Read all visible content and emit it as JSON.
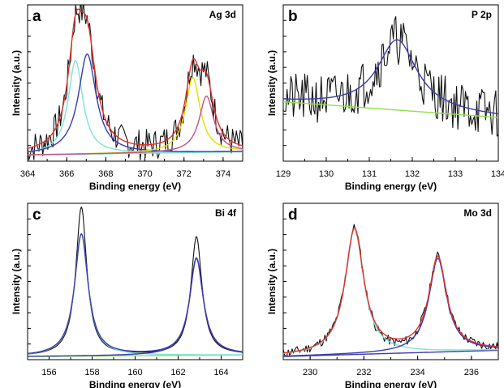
{
  "chart_data": [
    {
      "id": "a",
      "type": "line",
      "title": "Ag 3d",
      "xlabel": "Binding energy (eV)",
      "ylabel": "Intensity (a.u.)",
      "xlim": [
        364,
        375
      ],
      "ylim": [
        0,
        1.0
      ],
      "xticks": [
        364,
        366,
        368,
        370,
        372,
        374
      ],
      "baseline": [
        [
          364,
          0.04
        ],
        [
          375,
          0.06
        ]
      ],
      "peaks": [
        {
          "center": 366.45,
          "amp": 0.6,
          "width": 0.45,
          "color": "#7fe3d6"
        },
        {
          "center": 367.05,
          "amp": 0.64,
          "width": 0.55,
          "color": "#3a3ab0"
        },
        {
          "center": 372.45,
          "amp": 0.48,
          "width": 0.45,
          "color": "#e3e000"
        },
        {
          "center": 373.15,
          "amp": 0.36,
          "width": 0.45,
          "color": "#c0508a"
        }
      ],
      "envelope_color": "#e0302a",
      "baseline_color": "#7fe3d6",
      "raw": {
        "noise": 0.1,
        "seed": 7
      }
    },
    {
      "id": "b",
      "type": "line",
      "title": "P 2p",
      "xlabel": "Binding energy (eV)",
      "ylabel": "Intensity (a.u.)",
      "xlim": [
        129,
        134
      ],
      "ylim": [
        0,
        1.0
      ],
      "xticks": [
        129,
        130,
        131,
        132,
        133,
        134
      ],
      "baseline": [
        [
          129,
          0.38
        ],
        [
          134,
          0.28
        ]
      ],
      "peaks": [
        {
          "center": 131.65,
          "amp": 0.45,
          "width": 0.55,
          "color": "#3a3ab0"
        }
      ],
      "envelope_color": "#3a3ab0",
      "baseline_color": "#8ee04a",
      "raw": {
        "noise": 0.16,
        "seed": 21
      }
    },
    {
      "id": "c",
      "type": "line",
      "title": "Bi 4f",
      "xlabel": "Binding energy (eV)",
      "ylabel": "Intensity (a.u.)",
      "xlim": [
        155,
        165
      ],
      "ylim": [
        0,
        1.0
      ],
      "xticks": [
        156,
        158,
        160,
        162,
        164
      ],
      "baseline": [
        [
          155,
          0.02
        ],
        [
          165,
          0.03
        ]
      ],
      "peaks": [
        {
          "center": 157.5,
          "amp": 0.78,
          "width": 0.38,
          "color": "#7fe3d6"
        },
        {
          "center": 162.85,
          "amp": 0.62,
          "width": 0.38,
          "color": "#3a3ab0"
        }
      ],
      "envelope_color": "#3a3ab0",
      "baseline_color": "#8ee04a",
      "raw": {
        "noise": 0.0,
        "seed": 3,
        "sharpen": 0.82,
        "scale": 1.22
      }
    },
    {
      "id": "d",
      "type": "line",
      "title": "Mo 3d",
      "xlabel": "Binding energy (eV)",
      "ylabel": "Intensity (a.u.)",
      "xlim": [
        229,
        237
      ],
      "ylim": [
        0,
        1.0
      ],
      "xticks": [
        230,
        232,
        234,
        236
      ],
      "baseline": [
        [
          229,
          0.02
        ],
        [
          237,
          0.06
        ]
      ],
      "peaks": [
        {
          "center": 231.65,
          "amp": 0.8,
          "width": 0.42,
          "color": "#7fe3d6"
        },
        {
          "center": 234.75,
          "amp": 0.6,
          "width": 0.4,
          "color": "#3a3ab0"
        }
      ],
      "envelope_color": "#e0302a",
      "baseline_color": "#3a3ab0",
      "raw": {
        "noise": 0.03,
        "seed": 11,
        "sharpen": 0.85,
        "scale": 1.1
      }
    }
  ]
}
